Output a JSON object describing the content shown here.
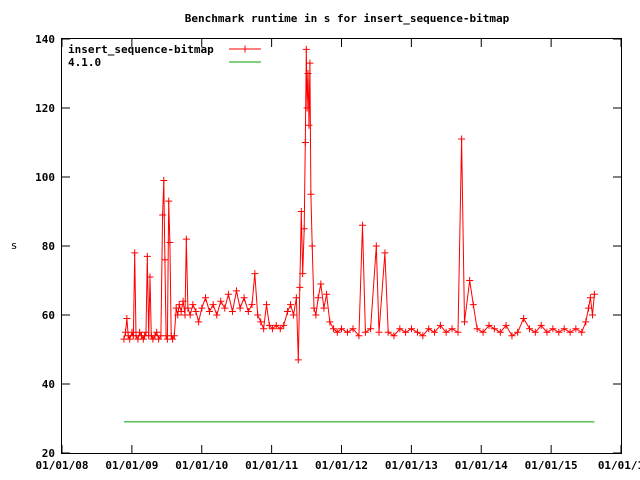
{
  "chart_data": {
    "type": "line",
    "title": "Benchmark runtime in s for insert_sequence-bitmap",
    "xlabel": "",
    "ylabel": "s",
    "x_axis_kind": "date",
    "xlim": [
      "2008-01-01",
      "2016-01-01"
    ],
    "ylim": [
      20,
      140
    ],
    "x_ticks": [
      "01/01/08",
      "01/01/09",
      "01/01/10",
      "01/01/11",
      "01/01/12",
      "01/01/13",
      "01/01/14",
      "01/01/15",
      "01/01/1"
    ],
    "y_ticks": [
      20,
      40,
      60,
      80,
      100,
      120,
      140
    ],
    "grid": false,
    "legend_position": "top-left",
    "series": [
      {
        "name": "insert_sequence-bitmap",
        "color": "#ff0000",
        "marker": "plus",
        "points": [
          [
            "2008-11-20",
            53
          ],
          [
            "2008-11-28",
            55
          ],
          [
            "2008-12-05",
            59
          ],
          [
            "2008-12-12",
            54
          ],
          [
            "2008-12-20",
            53
          ],
          [
            "2009-01-01",
            55
          ],
          [
            "2009-01-08",
            54
          ],
          [
            "2009-01-15",
            78
          ],
          [
            "2009-01-22",
            54
          ],
          [
            "2009-02-01",
            53
          ],
          [
            "2009-02-10",
            55
          ],
          [
            "2009-02-20",
            54
          ],
          [
            "2009-03-01",
            53
          ],
          [
            "2009-03-08",
            54
          ],
          [
            "2009-03-15",
            55
          ],
          [
            "2009-03-22",
            77
          ],
          [
            "2009-03-29",
            54
          ],
          [
            "2009-04-05",
            71
          ],
          [
            "2009-04-12",
            54
          ],
          [
            "2009-04-20",
            53
          ],
          [
            "2009-05-01",
            54
          ],
          [
            "2009-05-10",
            55
          ],
          [
            "2009-05-20",
            53
          ],
          [
            "2009-06-01",
            54
          ],
          [
            "2009-06-10",
            89
          ],
          [
            "2009-06-16",
            99
          ],
          [
            "2009-06-22",
            76
          ],
          [
            "2009-06-28",
            54
          ],
          [
            "2009-07-05",
            53
          ],
          [
            "2009-07-12",
            93
          ],
          [
            "2009-07-18",
            81
          ],
          [
            "2009-07-25",
            54
          ],
          [
            "2009-08-01",
            53
          ],
          [
            "2009-08-10",
            54
          ],
          [
            "2009-08-20",
            62
          ],
          [
            "2009-08-28",
            60
          ],
          [
            "2009-09-05",
            63
          ],
          [
            "2009-09-15",
            61
          ],
          [
            "2009-09-25",
            64
          ],
          [
            "2009-10-05",
            60
          ],
          [
            "2009-10-12",
            82
          ],
          [
            "2009-10-20",
            62
          ],
          [
            "2009-11-01",
            60
          ],
          [
            "2009-11-15",
            63
          ],
          [
            "2009-12-01",
            61
          ],
          [
            "2009-12-15",
            58
          ],
          [
            "2010-01-01",
            62
          ],
          [
            "2010-01-20",
            65
          ],
          [
            "2010-02-10",
            61
          ],
          [
            "2010-03-01",
            63
          ],
          [
            "2010-03-20",
            60
          ],
          [
            "2010-04-10",
            64
          ],
          [
            "2010-05-01",
            62
          ],
          [
            "2010-05-20",
            66
          ],
          [
            "2010-06-10",
            61
          ],
          [
            "2010-07-01",
            67
          ],
          [
            "2010-07-20",
            62
          ],
          [
            "2010-08-10",
            65
          ],
          [
            "2010-09-01",
            61
          ],
          [
            "2010-09-20",
            63
          ],
          [
            "2010-10-05",
            72
          ],
          [
            "2010-10-20",
            60
          ],
          [
            "2010-11-05",
            58
          ],
          [
            "2010-11-20",
            56
          ],
          [
            "2010-12-05",
            63
          ],
          [
            "2010-12-20",
            57
          ],
          [
            "2011-01-05",
            56
          ],
          [
            "2011-01-25",
            57
          ],
          [
            "2011-02-15",
            56
          ],
          [
            "2011-03-05",
            57
          ],
          [
            "2011-03-25",
            61
          ],
          [
            "2011-04-10",
            63
          ],
          [
            "2011-04-25",
            60
          ],
          [
            "2011-05-10",
            65
          ],
          [
            "2011-05-20",
            47
          ],
          [
            "2011-05-28",
            68
          ],
          [
            "2011-06-05",
            90
          ],
          [
            "2011-06-12",
            72
          ],
          [
            "2011-06-20",
            85
          ],
          [
            "2011-06-26",
            110
          ],
          [
            "2011-07-01",
            137
          ],
          [
            "2011-07-05",
            120
          ],
          [
            "2011-07-10",
            130
          ],
          [
            "2011-07-15",
            115
          ],
          [
            "2011-07-20",
            133
          ],
          [
            "2011-07-25",
            95
          ],
          [
            "2011-08-01",
            80
          ],
          [
            "2011-08-10",
            62
          ],
          [
            "2011-08-20",
            60
          ],
          [
            "2011-09-01",
            65
          ],
          [
            "2011-09-15",
            69
          ],
          [
            "2011-10-01",
            62
          ],
          [
            "2011-10-15",
            66
          ],
          [
            "2011-11-01",
            58
          ],
          [
            "2011-11-20",
            56
          ],
          [
            "2011-12-10",
            55
          ],
          [
            "2012-01-01",
            56
          ],
          [
            "2012-02-01",
            55
          ],
          [
            "2012-03-01",
            56
          ],
          [
            "2012-04-01",
            54
          ],
          [
            "2012-04-20",
            86
          ],
          [
            "2012-05-05",
            55
          ],
          [
            "2012-06-01",
            56
          ],
          [
            "2012-07-01",
            80
          ],
          [
            "2012-07-15",
            55
          ],
          [
            "2012-08-15",
            78
          ],
          [
            "2012-09-01",
            55
          ],
          [
            "2012-10-01",
            54
          ],
          [
            "2012-11-01",
            56
          ],
          [
            "2012-12-01",
            55
          ],
          [
            "2013-01-01",
            56
          ],
          [
            "2013-02-01",
            55
          ],
          [
            "2013-03-01",
            54
          ],
          [
            "2013-04-01",
            56
          ],
          [
            "2013-05-01",
            55
          ],
          [
            "2013-06-01",
            57
          ],
          [
            "2013-07-01",
            55
          ],
          [
            "2013-08-01",
            56
          ],
          [
            "2013-09-01",
            55
          ],
          [
            "2013-09-20",
            111
          ],
          [
            "2013-10-05",
            58
          ],
          [
            "2013-11-01",
            70
          ],
          [
            "2013-11-20",
            63
          ],
          [
            "2013-12-10",
            56
          ],
          [
            "2014-01-10",
            55
          ],
          [
            "2014-02-10",
            57
          ],
          [
            "2014-03-10",
            56
          ],
          [
            "2014-04-10",
            55
          ],
          [
            "2014-05-10",
            57
          ],
          [
            "2014-06-10",
            54
          ],
          [
            "2014-07-10",
            55
          ],
          [
            "2014-08-10",
            59
          ],
          [
            "2014-09-10",
            56
          ],
          [
            "2014-10-10",
            55
          ],
          [
            "2014-11-10",
            57
          ],
          [
            "2014-12-10",
            55
          ],
          [
            "2015-01-10",
            56
          ],
          [
            "2015-02-10",
            55
          ],
          [
            "2015-03-10",
            56
          ],
          [
            "2015-04-10",
            55
          ],
          [
            "2015-05-10",
            56
          ],
          [
            "2015-06-10",
            55
          ],
          [
            "2015-07-01",
            58
          ],
          [
            "2015-07-15",
            62
          ],
          [
            "2015-07-25",
            65
          ],
          [
            "2015-08-05",
            60
          ],
          [
            "2015-08-15",
            66
          ]
        ]
      },
      {
        "name": "4.1.0",
        "color": "#00a000",
        "marker": "none",
        "points": [
          [
            "2008-11-20",
            29
          ],
          [
            "2015-08-15",
            29
          ]
        ]
      }
    ]
  }
}
